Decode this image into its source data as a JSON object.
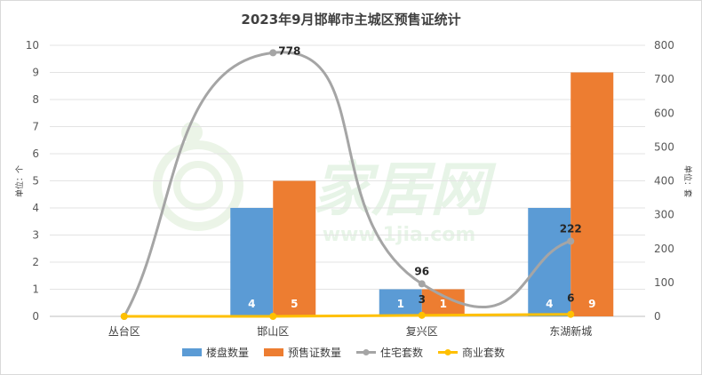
{
  "chart_data": {
    "type": "bar",
    "title": "2023年9月邯郸市主城区预售证统计",
    "categories": [
      "丛台区",
      "邯山区",
      "复兴区",
      "东湖新城"
    ],
    "left_axis": {
      "unit_label": "单位：个",
      "ylim": [
        0,
        10
      ],
      "ticks": [
        "0",
        "1",
        "2",
        "3",
        "4",
        "5",
        "6",
        "7",
        "8",
        "9",
        "10"
      ]
    },
    "right_axis": {
      "unit_label": "单位：套",
      "ylim": [
        0,
        800
      ],
      "ticks": [
        "0",
        "100",
        "200",
        "300",
        "400",
        "500",
        "600",
        "700",
        "800"
      ]
    },
    "series": [
      {
        "name": "楼盘数量",
        "kind": "bar",
        "axis": "left",
        "color": "#5b9bd5",
        "values": [
          0,
          4,
          1,
          4
        ],
        "labels": [
          "",
          "4",
          "1",
          "4"
        ]
      },
      {
        "name": "预售证数量",
        "kind": "bar",
        "axis": "left",
        "color": "#ed7d31",
        "values": [
          0,
          5,
          1,
          9
        ],
        "labels": [
          "",
          "5",
          "1",
          "9"
        ]
      },
      {
        "name": "住宅套数",
        "kind": "line",
        "axis": "right",
        "color": "#a5a5a5",
        "smooth": true,
        "values": [
          0,
          778,
          96,
          222
        ],
        "labels": [
          "",
          "778",
          "96",
          "222"
        ]
      },
      {
        "name": "商业套数",
        "kind": "line",
        "axis": "right",
        "color": "#ffc000",
        "smooth": false,
        "values": [
          0,
          0,
          3,
          6
        ],
        "labels": [
          "",
          "",
          "3",
          "6"
        ]
      }
    ],
    "grid": true,
    "legend_position": "bottom",
    "watermark": {
      "main": "家居网",
      "sub": "www.1jia.com"
    }
  }
}
